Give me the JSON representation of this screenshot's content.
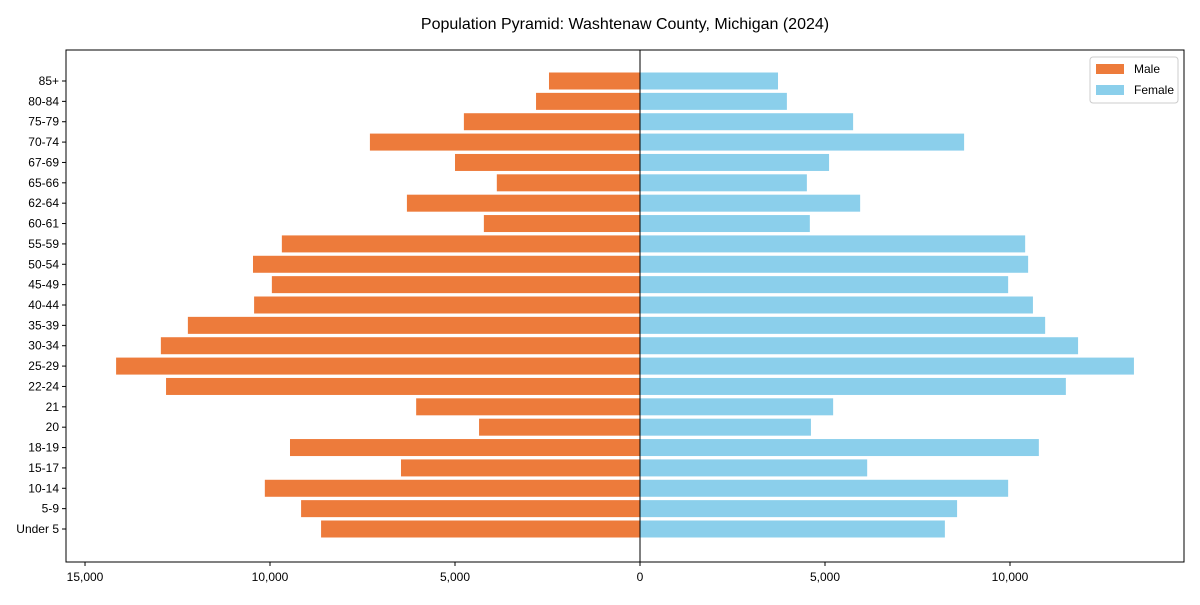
{
  "chart_data": {
    "type": "bar",
    "title": "Population Pyramid: Washtenaw County, Michigan (2024)",
    "xlabel": "",
    "ylabel": "",
    "xlim": [
      -15514,
      14703
    ],
    "x_ticks": [
      -15000,
      -10000,
      -5000,
      0,
      5000,
      10000
    ],
    "x_tick_labels": [
      "15,000",
      "10,000",
      "5,000",
      "0",
      "5,000",
      "10,000"
    ],
    "categories": [
      "Under 5",
      "5-9",
      "10-14",
      "15-17",
      "18-19",
      "20",
      "21",
      "22-24",
      "25-29",
      "30-34",
      "35-39",
      "40-44",
      "45-49",
      "50-54",
      "55-59",
      "60-61",
      "62-64",
      "65-66",
      "67-69",
      "70-74",
      "75-79",
      "80-84",
      "85+"
    ],
    "series": [
      {
        "name": "Male",
        "color": "#ed7b3b",
        "values": [
          8620,
          9160,
          10140,
          6460,
          9460,
          4350,
          6050,
          12810,
          14160,
          12950,
          12220,
          10430,
          9950,
          10460,
          9680,
          4220,
          6300,
          3870,
          5000,
          7300,
          4760,
          2810,
          2460
        ]
      },
      {
        "name": "Female",
        "color": "#8bcfeb",
        "values": [
          8240,
          8570,
          9950,
          6140,
          10780,
          4620,
          5220,
          11510,
          13350,
          11840,
          10950,
          10620,
          9950,
          10490,
          10410,
          4590,
          5950,
          4510,
          5110,
          8760,
          5760,
          3970,
          3730
        ]
      }
    ],
    "legend": {
      "position": "top-right",
      "entries": [
        "Male",
        "Female"
      ]
    },
    "grid": false
  }
}
